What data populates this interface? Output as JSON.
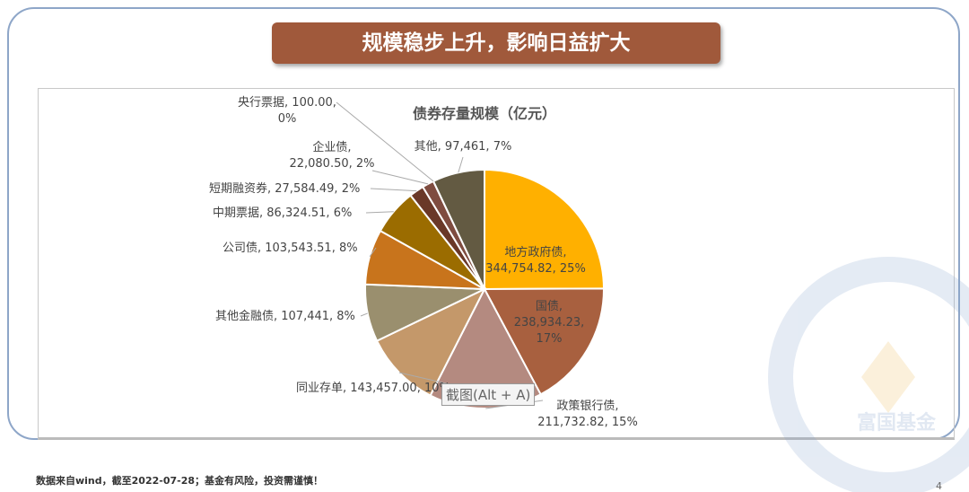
{
  "banner": "规模稳步上升，影响日益扩大",
  "footer": "数据来自wind，截至2022-07-28；基金有风险，投资需谨慎！",
  "page_number": "4",
  "tooltip": "截图(Alt + A)",
  "watermark": "富国基金",
  "chart_data": {
    "type": "pie",
    "title": "债券存量规模（亿元）",
    "start": "top, clockwise",
    "slices": [
      {
        "name": "地方政府债",
        "value": 344754.82,
        "value_label": "344,754.82",
        "pct": "25%",
        "color": "#FFB000"
      },
      {
        "name": "国债",
        "value": 238934.23,
        "value_label": "238,934.23",
        "pct": "17%",
        "color": "#A8603F"
      },
      {
        "name": "政策银行债",
        "value": 211732.82,
        "value_label": "211,732.82",
        "pct": "15%",
        "color": "#B48A80"
      },
      {
        "name": "同业存单",
        "value": 143457.0,
        "value_label": "143,457.00",
        "pct": "10%",
        "color": "#C4986A"
      },
      {
        "name": "其他金融债",
        "value": 107441,
        "value_label": "107,441",
        "pct": "8%",
        "color": "#9A8F6E"
      },
      {
        "name": "公司债",
        "value": 103543.51,
        "value_label": "103,543.51",
        "pct": "8%",
        "color": "#C8741C"
      },
      {
        "name": "中期票据",
        "value": 86324.51,
        "value_label": "86,324.51",
        "pct": "6%",
        "color": "#9B6C00"
      },
      {
        "name": "短期融资券",
        "value": 27584.49,
        "value_label": "27,584.49",
        "pct": "2%",
        "color": "#6A3828"
      },
      {
        "name": "企业债",
        "value": 22080.5,
        "value_label": "22,080.50",
        "pct": "2%",
        "color": "#7F4C40"
      },
      {
        "name": "央行票据",
        "value": 100.0,
        "value_label": "100.00",
        "pct": "0%",
        "color": "#8a6a50"
      },
      {
        "name": "其他",
        "value": 97461,
        "value_label": "97,461",
        "pct": "7%",
        "color": "#635A42"
      }
    ]
  }
}
